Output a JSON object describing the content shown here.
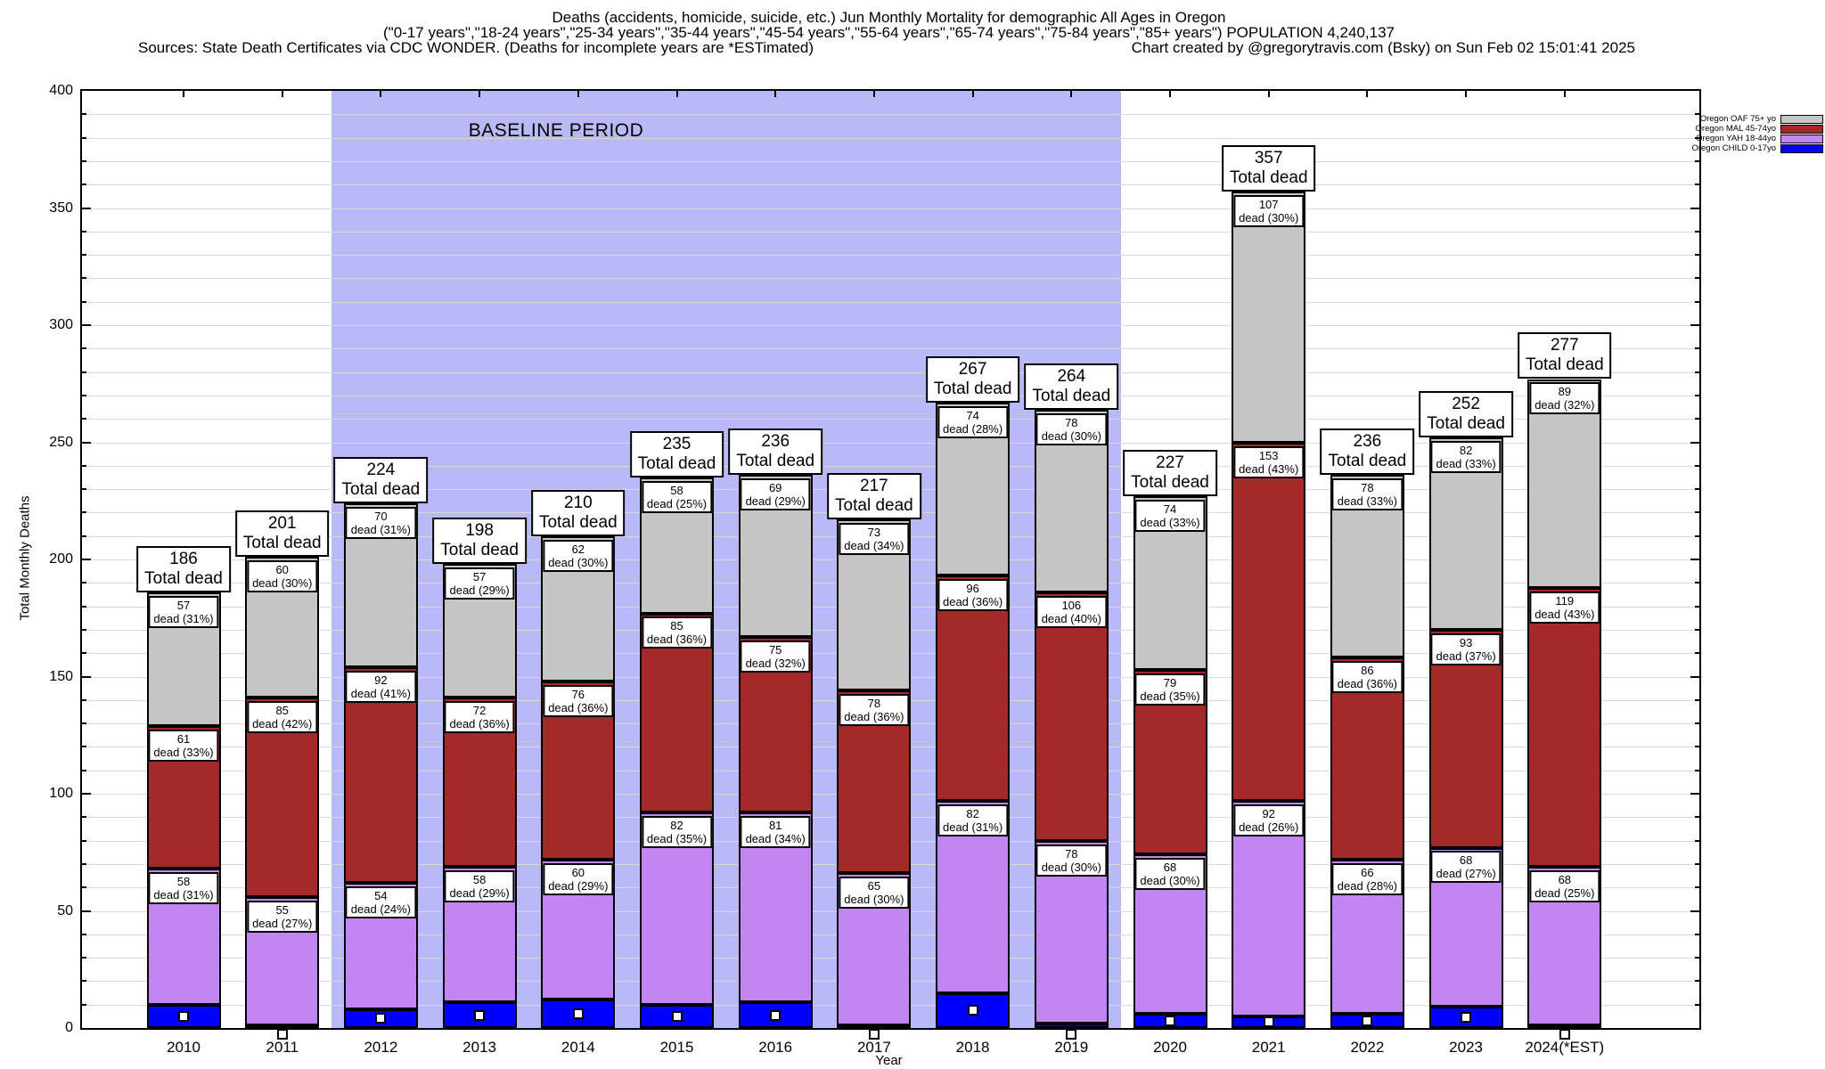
{
  "header": {
    "title_line1": "Deaths (accidents, homicide, suicide, etc.) Jun Monthly Mortality for demographic All Ages in Oregon",
    "title_line2": "(\"0-17 years\",\"18-24 years\",\"25-34 years\",\"35-44 years\",\"45-54 years\",\"55-64 years\",\"65-74 years\",\"75-84 years\",\"85+ years\") POPULATION 4,240,137",
    "sources": "Sources: State Death Certificates via CDC WONDER. (Deaths for incomplete years are *ESTimated)",
    "credit": "Chart created by @gregorytravis.com (Bsky) on Sun Feb 02 15:01:41 2025"
  },
  "chart_data": {
    "type": "bar",
    "stacked": true,
    "title": "Deaths (accidents, homicide, suicide, etc.) Jun Monthly Mortality for demographic All Ages in Oregon",
    "xlabel": "Year",
    "ylabel": "Total Monthly Deaths",
    "ylim": [
      0,
      400
    ],
    "ytick_major": 50,
    "ytick_minor": 10,
    "grid": true,
    "legend_position": "top-right-outside",
    "categories": [
      "2010",
      "2011",
      "2012",
      "2013",
      "2014",
      "2015",
      "2016",
      "2017",
      "2018",
      "2019",
      "2020",
      "2021",
      "2022",
      "2023",
      "2024(*EST)"
    ],
    "totals": [
      186,
      201,
      224,
      198,
      210,
      235,
      236,
      217,
      267,
      264,
      227,
      357,
      236,
      252,
      277
    ],
    "total_label_suffix": "Total dead",
    "series": [
      {
        "name": "Oregon CHILD 0-17yo",
        "color": "#0000ff",
        "values": [
          10,
          1,
          8,
          11,
          12,
          10,
          11,
          1,
          15,
          2,
          6,
          5,
          6,
          9,
          1
        ],
        "labeled": false
      },
      {
        "name": "Oregon YAH 18-44yo",
        "color": "#c385f2",
        "values": [
          58,
          55,
          54,
          58,
          60,
          82,
          81,
          65,
          82,
          78,
          68,
          92,
          66,
          68,
          68
        ],
        "pct": [
          31,
          27,
          24,
          29,
          29,
          35,
          34,
          30,
          31,
          30,
          30,
          26,
          28,
          27,
          25
        ],
        "labeled": true
      },
      {
        "name": "Oregon MAL 45-74yo",
        "color": "#a42a2a",
        "values": [
          61,
          85,
          92,
          72,
          76,
          85,
          75,
          78,
          96,
          106,
          79,
          153,
          86,
          93,
          119
        ],
        "pct": [
          33,
          42,
          41,
          36,
          36,
          36,
          32,
          36,
          36,
          40,
          35,
          43,
          36,
          37,
          43
        ],
        "labeled": true
      },
      {
        "name": "Oregon OAF 75+ yo",
        "color": "#c5c5c5",
        "values": [
          57,
          60,
          70,
          57,
          62,
          58,
          69,
          73,
          74,
          78,
          74,
          107,
          78,
          82,
          89
        ],
        "pct": [
          31,
          30,
          31,
          29,
          30,
          25,
          29,
          34,
          28,
          30,
          33,
          30,
          33,
          33,
          32
        ],
        "labeled": true
      }
    ],
    "segment_label_format": "{value} / dead ({pct}%)",
    "point_marker": {
      "shape": "white-square",
      "series": "Oregon CHILD 0-17yo"
    },
    "baseline": {
      "label": "BASELINE PERIOD",
      "from": "2011/2012 boundary",
      "to": "2019/2020 boundary",
      "color": "#b9b9f7"
    },
    "legend": [
      {
        "label": "Oregon OAF 75+ yo",
        "color": "#c5c5c5"
      },
      {
        "label": "Oregon MAL 45-74yo",
        "color": "#a42a2a"
      },
      {
        "label": "Oregon YAH 18-44yo",
        "color": "#c385f2"
      },
      {
        "label": "Oregon CHILD 0-17yo",
        "color": "#0000ff"
      }
    ]
  }
}
